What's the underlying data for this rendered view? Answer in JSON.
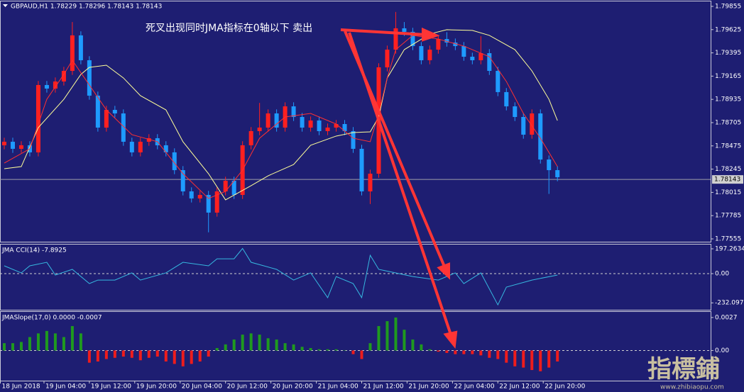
{
  "header": "GBPAUD,H1  1.78229 1.78296 1.78143 1.78143",
  "annotation": "死叉出现同时JMA指标在0轴以下 卖出",
  "watermark": {
    "title": "指標鋪",
    "url": "www.zhibiaopu.com"
  },
  "chart_data": [
    {
      "type": "candlestick",
      "up_color": "#ff2020",
      "down_color": "#1e9bff",
      "xlim": [
        -0.5,
        83
      ],
      "ylim": [
        1.77527,
        1.79904
      ],
      "yticks": [
        1.79855,
        1.79625,
        1.79395,
        1.79165,
        1.78935,
        1.78705,
        1.78475,
        1.78245,
        1.78015,
        1.77785,
        1.77555
      ],
      "last_price": {
        "value": 1.78143,
        "label": "1.78143"
      },
      "candles": [
        [
          1.78481,
          1.78556,
          1.78441,
          1.78516
        ],
        [
          1.78516,
          1.78556,
          1.78406,
          1.78446
        ],
        [
          1.78446,
          1.78521,
          1.78406,
          1.78481
        ],
        [
          1.78481,
          1.78521,
          1.78371,
          1.78411
        ],
        [
          1.78411,
          1.79117,
          1.78371,
          1.79077
        ],
        [
          1.79077,
          1.79117,
          1.79002,
          1.79042
        ],
        [
          1.79042,
          1.79152,
          1.79002,
          1.79112
        ],
        [
          1.79112,
          1.79257,
          1.79072,
          1.79217
        ],
        [
          1.79217,
          1.797,
          1.79177,
          1.79568
        ],
        [
          1.79568,
          1.79608,
          1.79282,
          1.79322
        ],
        [
          1.79322,
          1.79362,
          1.78932,
          1.78972
        ],
        [
          1.78972,
          1.79012,
          1.78616,
          1.78656
        ],
        [
          1.78656,
          1.78871,
          1.78616,
          1.78831
        ],
        [
          1.78831,
          1.78871,
          1.78756,
          1.78796
        ],
        [
          1.78796,
          1.78836,
          1.78476,
          1.78516
        ],
        [
          1.78516,
          1.78556,
          1.78371,
          1.78411
        ],
        [
          1.78411,
          1.78556,
          1.78371,
          1.78516
        ],
        [
          1.78516,
          1.78591,
          1.78476,
          1.78551
        ],
        [
          1.78551,
          1.78591,
          1.78441,
          1.78481
        ],
        [
          1.78481,
          1.78521,
          1.78371,
          1.78411
        ],
        [
          1.78411,
          1.78451,
          1.78195,
          1.78235
        ],
        [
          1.78235,
          1.78275,
          1.77985,
          1.78025
        ],
        [
          1.78025,
          1.78065,
          1.77915,
          1.77955
        ],
        [
          1.77955,
          1.7803,
          1.77915,
          1.7799
        ],
        [
          1.7799,
          1.7803,
          1.7762,
          1.77815
        ],
        [
          1.77815,
          1.78065,
          1.77775,
          1.78025
        ],
        [
          1.78025,
          1.7817,
          1.77985,
          1.7813
        ],
        [
          1.7813,
          1.7817,
          1.7795,
          1.7799
        ],
        [
          1.7799,
          1.78521,
          1.7795,
          1.78481
        ],
        [
          1.78481,
          1.78661,
          1.78441,
          1.78621
        ],
        [
          1.78621,
          1.789,
          1.78581,
          1.78656
        ],
        [
          1.78656,
          1.78836,
          1.78616,
          1.78796
        ],
        [
          1.78796,
          1.78836,
          1.78616,
          1.78656
        ],
        [
          1.78656,
          1.78906,
          1.78616,
          1.78866
        ],
        [
          1.78866,
          1.78906,
          1.78721,
          1.78761
        ],
        [
          1.78761,
          1.78801,
          1.78616,
          1.78656
        ],
        [
          1.78656,
          1.78766,
          1.78616,
          1.78726
        ],
        [
          1.78726,
          1.78766,
          1.78581,
          1.78621
        ],
        [
          1.78621,
          1.78696,
          1.78581,
          1.78656
        ],
        [
          1.78656,
          1.78731,
          1.78616,
          1.78691
        ],
        [
          1.78691,
          1.78731,
          1.78581,
          1.78621
        ],
        [
          1.78621,
          1.78661,
          1.78406,
          1.78446
        ],
        [
          1.78446,
          1.78486,
          1.77985,
          1.78025
        ],
        [
          1.78025,
          1.7824,
          1.779,
          1.782
        ],
        [
          1.782,
          1.79292,
          1.7816,
          1.79252
        ],
        [
          1.79252,
          1.79467,
          1.79212,
          1.79427
        ],
        [
          1.79427,
          1.798,
          1.79387,
          1.79638
        ],
        [
          1.79638,
          1.797,
          1.79563,
          1.79603
        ],
        [
          1.79603,
          1.79643,
          1.79422,
          1.79462
        ],
        [
          1.79462,
          1.79502,
          1.79282,
          1.79322
        ],
        [
          1.79322,
          1.79467,
          1.79282,
          1.79427
        ],
        [
          1.79427,
          1.79572,
          1.79387,
          1.79532
        ],
        [
          1.79532,
          1.796,
          1.79457,
          1.79497
        ],
        [
          1.79497,
          1.79537,
          1.79422,
          1.79462
        ],
        [
          1.79462,
          1.79502,
          1.79317,
          1.79357
        ],
        [
          1.79357,
          1.79397,
          1.79282,
          1.79322
        ],
        [
          1.79322,
          1.7956,
          1.79282,
          1.79392
        ],
        [
          1.79392,
          1.79432,
          1.79177,
          1.79217
        ],
        [
          1.79217,
          1.79257,
          1.78967,
          1.79007
        ],
        [
          1.79007,
          1.79047,
          1.78826,
          1.78866
        ],
        [
          1.78866,
          1.78906,
          1.78721,
          1.78761
        ],
        [
          1.78761,
          1.78801,
          1.78546,
          1.78586
        ],
        [
          1.78586,
          1.78836,
          1.78546,
          1.78796
        ],
        [
          1.78796,
          1.78836,
          1.783,
          1.7834
        ],
        [
          1.7834,
          1.7838,
          1.78,
          1.78235
        ],
        [
          1.78235,
          1.78275,
          1.78125,
          1.78165
        ]
      ],
      "series": [
        {
          "color": "#ffff99",
          "x": [
            0,
            2,
            4,
            7,
            9,
            10,
            12,
            14,
            16,
            19,
            21,
            24,
            26,
            29,
            31,
            34,
            36,
            39,
            41,
            43,
            44,
            45,
            47,
            50,
            52,
            55,
            57,
            60,
            62,
            64,
            65
          ],
          "values": [
            1.78249,
            1.7827,
            1.78656,
            1.78936,
            1.79182,
            1.79252,
            1.79273,
            1.79147,
            1.78972,
            1.78831,
            1.78516,
            1.782,
            1.77941,
            1.78081,
            1.78179,
            1.78291,
            1.78481,
            1.78572,
            1.78607,
            1.78614,
            1.78761,
            1.79147,
            1.79427,
            1.79582,
            1.79624,
            1.79617,
            1.79568,
            1.79427,
            1.79217,
            1.78936,
            1.78726
          ]
        },
        {
          "color": "#ff3030",
          "x": [
            0,
            3,
            5,
            7,
            8,
            10,
            12,
            15,
            18,
            21,
            24,
            26,
            28,
            30,
            33,
            36,
            39,
            41,
            43,
            44,
            45,
            46,
            48,
            51,
            54,
            57,
            59,
            61,
            63,
            65
          ],
          "values": [
            1.78305,
            1.78446,
            1.78936,
            1.79182,
            1.79322,
            1.79077,
            1.78831,
            1.78586,
            1.78516,
            1.782,
            1.77955,
            1.78025,
            1.78235,
            1.78551,
            1.78761,
            1.78796,
            1.78691,
            1.78551,
            1.78516,
            1.78796,
            1.79147,
            1.79427,
            1.79568,
            1.79532,
            1.79462,
            1.79357,
            1.79112,
            1.78796,
            1.78551,
            1.7827
          ]
        }
      ]
    },
    {
      "type": "line",
      "label": "JMA CCI(14) -7.8925",
      "xlim": [
        -0.5,
        83
      ],
      "ylim": [
        -287,
        231
      ],
      "yticks": [
        197.2634,
        {
          "value": 0,
          "label": "0.00"
        },
        -232.0978
      ],
      "zero_line": true,
      "series": [
        {
          "color": "#36b8e0",
          "x": [
            0,
            2,
            3,
            5,
            6,
            8,
            10,
            11,
            13,
            15,
            16,
            19,
            21,
            24,
            25,
            27,
            28,
            29,
            32,
            34,
            36,
            38,
            39,
            41,
            42,
            43,
            44,
            46,
            48,
            51,
            53,
            54,
            56,
            58,
            59,
            62,
            65
          ],
          "values": [
            62,
            6,
            62,
            90,
            -11,
            34,
            -79,
            -51,
            -51,
            6,
            -51,
            6,
            90,
            62,
            118,
            118,
            200,
            90,
            34,
            -51,
            6,
            -191,
            -23,
            -79,
            -191,
            146,
            34,
            6,
            -23,
            -51,
            6,
            -79,
            6,
            -248,
            -107,
            -51,
            -11
          ]
        }
      ]
    },
    {
      "type": "bar",
      "label": "JMASlope(17,0) 0.0000 -0.0007",
      "xlim": [
        -0.5,
        83
      ],
      "ylim": [
        -0.00247,
        0.00316
      ],
      "yticks": [
        0.0027,
        {
          "value": 0,
          "label": "0.00"
        }
      ],
      "zero_line": true,
      "up_color": "#1f9a1f",
      "down_color": "#ee1c1c",
      "values": [
        0.0006,
        0.0006,
        0.0007,
        0.0011,
        0.0014,
        0.0016,
        0.0014,
        0.0011,
        0.002,
        0.0014,
        -0.001,
        -0.0009,
        -0.0007,
        -0.0006,
        -0.0005,
        -0.0006,
        -0.0008,
        -0.0006,
        -0.0005,
        -0.0009,
        -0.0011,
        -0.0013,
        -0.0011,
        -0.0009,
        -0.0005,
        0.0002,
        0.0005,
        0.0009,
        0.0013,
        0.0014,
        0.0013,
        0.001,
        0.0009,
        0.0006,
        0.0005,
        0.0003,
        0.0002,
        0.0001,
        0.0001,
        0.0001,
        3e-05,
        -0.0003,
        -0.0007,
        0.0006,
        0.002,
        0.0024,
        0.0027,
        0.0017,
        0.0009,
        0.0005,
        0.0001,
        -0.0001,
        -0.0002,
        -0.0003,
        -0.0003,
        -0.0003,
        -0.0004,
        -0.0006,
        -0.0007,
        -0.001,
        -0.0013,
        -0.0014,
        -0.0016,
        -0.0017,
        -0.0014,
        -0.0009
      ],
      "xticks": [
        {
          "value": -0.5,
          "label": "18 Jun 2018"
        },
        {
          "value": 4.67,
          "label": "19 Jun 04:00"
        },
        {
          "value": 10,
          "label": "19 Jun 12:00"
        },
        {
          "value": 15.33,
          "label": "19 Jun 20:00"
        },
        {
          "value": 20.67,
          "label": "20 Jun 04:00"
        },
        {
          "value": 26,
          "label": "20 Jun 12:00"
        },
        {
          "value": 31.33,
          "label": "20 Jun 20:00"
        },
        {
          "value": 36.67,
          "label": "21 Jun 04:00"
        },
        {
          "value": 42,
          "label": "21 Jun 12:00"
        },
        {
          "value": 47.33,
          "label": "21 Jun 20:00"
        },
        {
          "value": 52.67,
          "label": "22 Jun 04:00"
        },
        {
          "value": 58,
          "label": "22 Jun 12:00"
        },
        {
          "value": 63.33,
          "label": "22 Jun 20:00"
        }
      ]
    }
  ]
}
